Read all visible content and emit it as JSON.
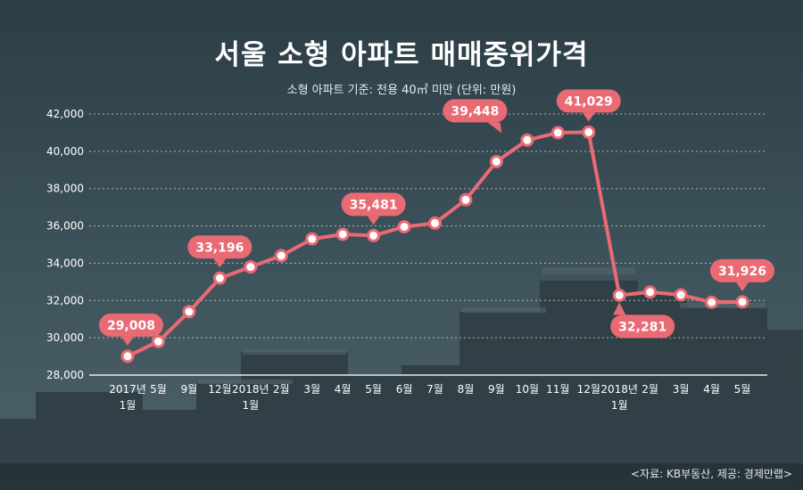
{
  "title": "서울 소형 아파트 매매중위가격",
  "subtitle": "소형 아파트 기준: 전용 40㎡ 미만 (단위: 만원)",
  "source": "<자료: KB부동산, 제공: 경제만랩>",
  "colors": {
    "line": "#ea6a74",
    "label_bg": "#ea6a74",
    "grid": "#c9d1d4",
    "text": "#ffffff"
  },
  "chart_data": {
    "type": "line",
    "title": "서울 소형 아파트 매매중위가격",
    "subtitle": "소형 아파트 기준: 전용 40㎡ 미만 (단위: 만원)",
    "ylim": [
      28000,
      42000
    ],
    "yticks": [
      "28,000",
      "30,000",
      "32,000",
      "34,000",
      "36,000",
      "38,000",
      "40,000",
      "42,000"
    ],
    "grid": true,
    "categories": [
      [
        "2017년",
        "1월"
      ],
      [
        "5월"
      ],
      [
        "9월"
      ],
      [
        "12월"
      ],
      [
        "2018년",
        "1월"
      ],
      [
        "2월"
      ],
      [
        "3월"
      ],
      [
        "4월"
      ],
      [
        "5월"
      ],
      [
        "6월"
      ],
      [
        "7월"
      ],
      [
        "8월"
      ],
      [
        "9월"
      ],
      [
        "10월"
      ],
      [
        "11월"
      ],
      [
        "12월"
      ],
      [
        "2018년",
        "1월"
      ],
      [
        "2월"
      ],
      [
        "3월"
      ],
      [
        "4월"
      ],
      [
        "5월"
      ]
    ],
    "values": [
      29008,
      29800,
      31400,
      33196,
      33800,
      34400,
      35300,
      35550,
      35481,
      35950,
      36150,
      37400,
      39448,
      40600,
      41000,
      41029,
      32281,
      32450,
      32300,
      31900,
      31926
    ],
    "callouts": [
      {
        "index": 0,
        "text": "29,008",
        "position": "above"
      },
      {
        "index": 3,
        "text": "33,196",
        "position": "above"
      },
      {
        "index": 8,
        "text": "35,481",
        "position": "above"
      },
      {
        "index": 12,
        "text": "39,448",
        "position": "above-left"
      },
      {
        "index": 15,
        "text": "41,029",
        "position": "above"
      },
      {
        "index": 16,
        "text": "32,281",
        "position": "below"
      },
      {
        "index": 20,
        "text": "31,926",
        "position": "above"
      }
    ]
  }
}
